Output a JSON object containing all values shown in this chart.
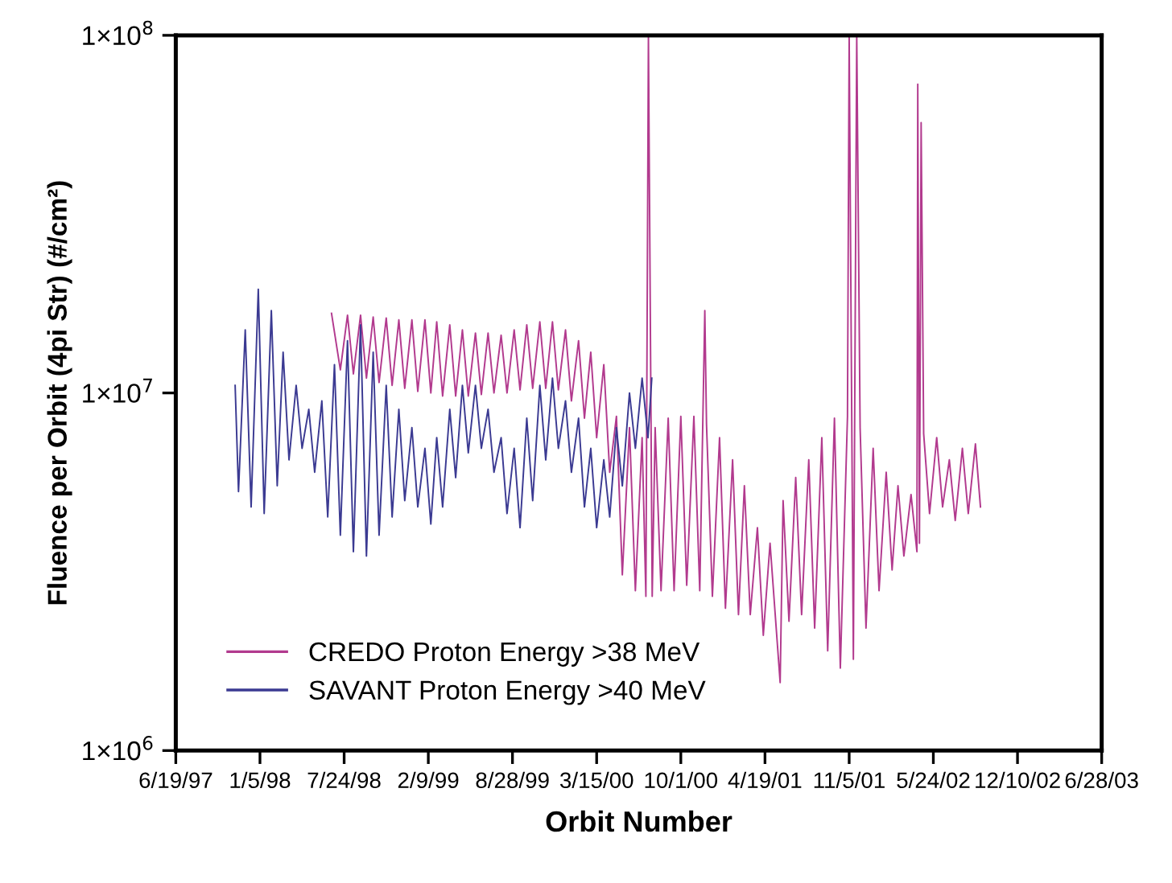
{
  "chart_data": {
    "type": "line",
    "xlabel": "Orbit Number",
    "ylabel": "Fluence per Orbit (4pi Str) (#/cm²)",
    "xlim": [
      "1997-06-19",
      "2003-06-28"
    ],
    "xticks": [
      {
        "value": "1997-06-19",
        "label": "6/19/97"
      },
      {
        "value": "1998-01-05",
        "label": "1/5/98"
      },
      {
        "value": "1998-07-24",
        "label": "7/24/98"
      },
      {
        "value": "1999-02-09",
        "label": "2/9/99"
      },
      {
        "value": "1999-08-28",
        "label": "8/28/99"
      },
      {
        "value": "2000-03-15",
        "label": "3/15/00"
      },
      {
        "value": "2000-10-01",
        "label": "10/1/00"
      },
      {
        "value": "2001-04-19",
        "label": "4/19/01"
      },
      {
        "value": "2001-11-05",
        "label": "11/5/01"
      },
      {
        "value": "2002-05-24",
        "label": "5/24/02"
      },
      {
        "value": "2002-12-10",
        "label": "12/10/02"
      },
      {
        "value": "2003-06-28",
        "label": "6/28/03"
      }
    ],
    "log": true,
    "ylim": [
      1000000.0,
      100000000.0
    ],
    "yticks": [
      {
        "value": 1000000.0,
        "label": "1×10$^{6}$"
      },
      {
        "value": 10000000.0,
        "label": "1×10$^{7}$"
      },
      {
        "value": 100000000.0,
        "label": "1×10$^{8}$"
      }
    ],
    "grid": false,
    "legend": "bottom left",
    "marker": "none",
    "line_style": "solid",
    "series": [
      {
        "name": "CREDO Proton Energy >38 MeV",
        "color": "#b23a8e",
        "x": [
          "1998-06-24",
          "1998-07-15",
          "1998-08-01",
          "1998-08-15",
          "1998-09-01",
          "1998-09-15",
          "1998-10-01",
          "1998-10-15",
          "1998-11-01",
          "1998-11-15",
          "1998-12-01",
          "1998-12-15",
          "1999-01-01",
          "1999-01-15",
          "1999-02-01",
          "1999-02-15",
          "1999-03-01",
          "1999-03-15",
          "1999-04-01",
          "1999-04-15",
          "1999-05-01",
          "1999-05-15",
          "1999-06-01",
          "1999-06-15",
          "1999-07-01",
          "1999-07-15",
          "1999-08-01",
          "1999-08-15",
          "1999-09-01",
          "1999-09-15",
          "1999-10-01",
          "1999-10-15",
          "1999-11-01",
          "1999-11-15",
          "1999-12-01",
          "1999-12-15",
          "2000-01-01",
          "2000-01-15",
          "2000-02-01",
          "2000-02-15",
          "2000-03-01",
          "2000-03-15",
          "2000-04-01",
          "2000-04-15",
          "2000-05-01",
          "2000-05-15",
          "2000-06-01",
          "2000-06-15",
          "2000-07-01",
          "2000-07-10",
          "2000-07-16",
          "2000-07-25",
          "2000-08-01",
          "2000-08-15",
          "2000-09-01",
          "2000-09-15",
          "2000-10-01",
          "2000-10-15",
          "2000-11-01",
          "2000-11-15",
          "2000-11-27",
          "2000-12-01",
          "2000-12-15",
          "2001-01-01",
          "2001-01-15",
          "2001-02-01",
          "2001-02-15",
          "2001-03-01",
          "2001-03-15",
          "2001-04-01",
          "2001-04-15",
          "2001-05-01",
          "2001-05-25",
          "2001-06-01",
          "2001-06-15",
          "2001-07-01",
          "2001-07-15",
          "2001-08-01",
          "2001-08-15",
          "2001-09-01",
          "2001-09-15",
          "2001-10-01",
          "2001-10-15",
          "2001-11-01",
          "2001-11-05",
          "2001-11-15",
          "2001-11-23",
          "2001-12-01",
          "2001-12-15",
          "2002-01-01",
          "2002-01-15",
          "2002-02-01",
          "2002-02-15",
          "2002-03-01",
          "2002-03-15",
          "2002-04-01",
          "2002-04-15",
          "2002-04-17",
          "2002-04-21",
          "2002-04-25",
          "2002-05-01",
          "2002-05-15",
          "2002-06-01",
          "2002-06-15",
          "2002-07-01",
          "2002-07-15",
          "2002-08-01",
          "2002-08-15",
          "2002-09-01",
          "2002-09-13"
        ],
        "values": [
          16700000.0,
          11600000.0,
          16500000.0,
          11300000.0,
          16500000.0,
          11000000.0,
          16300000.0,
          10700000.0,
          16200000.0,
          10500000.0,
          16000000.0,
          10300000.0,
          16000000.0,
          10100000.0,
          16000000.0,
          10000000.0,
          15800000.0,
          9800000.0,
          15500000.0,
          9800000.0,
          15000000.0,
          9800000.0,
          14700000.0,
          9900000.0,
          14700000.0,
          10000000.0,
          14500000.0,
          10000000.0,
          15000000.0,
          10200000.0,
          15500000.0,
          10300000.0,
          15800000.0,
          10300000.0,
          15800000.0,
          10200000.0,
          15000000.0,
          9500000.0,
          14000000.0,
          8500000.0,
          13000000.0,
          7500000.0,
          12000000.0,
          6000000.0,
          8600000.0,
          3100000.0,
          8000000.0,
          2800000.0,
          7500000.0,
          2700000.0,
          100000000.0,
          2700000.0,
          8000000.0,
          2800000.0,
          8500000.0,
          2800000.0,
          8600000.0,
          2900000.0,
          8600000.0,
          2800000.0,
          17000000.0,
          8200000.0,
          2700000.0,
          7500000.0,
          2500000.0,
          6500000.0,
          2400000.0,
          5500000.0,
          2400000.0,
          4200000.0,
          2100000.0,
          3800000.0,
          1550000.0,
          5000000.0,
          2300000.0,
          5800000.0,
          2400000.0,
          6500000.0,
          2200000.0,
          7500000.0,
          1900000.0,
          8500000.0,
          1700000.0,
          8600000.0,
          100000000.0,
          1800000.0,
          100000000.0,
          8000000.0,
          2200000.0,
          7000000.0,
          2800000.0,
          6000000.0,
          3200000.0,
          5500000.0,
          3500000.0,
          5200000.0,
          3600000.0,
          73000000.0,
          3800000.0,
          57000000.0,
          7700000.0,
          4600000.0,
          7500000.0,
          4800000.0,
          6500000.0,
          4400000.0,
          7000000.0,
          4600000.0,
          7200000.0,
          4800000.0
        ]
      },
      {
        "name": "SAVANT Proton Energy >40 MeV",
        "color": "#3b3a92",
        "x": [
          "1997-11-07",
          "1997-11-15",
          "1997-12-01",
          "1997-12-15",
          "1998-01-01",
          "1998-01-15",
          "1998-02-01",
          "1998-02-15",
          "1998-03-01",
          "1998-03-15",
          "1998-04-01",
          "1998-04-15",
          "1998-05-01",
          "1998-05-15",
          "1998-06-01",
          "1998-06-15",
          "1998-07-01",
          "1998-07-15",
          "1998-08-01",
          "1998-08-15",
          "1998-09-01",
          "1998-09-15",
          "1998-10-01",
          "1998-10-15",
          "1998-11-01",
          "1998-11-15",
          "1998-12-01",
          "1998-12-15",
          "1999-01-01",
          "1999-01-15",
          "1999-02-01",
          "1999-02-15",
          "1999-03-01",
          "1999-03-15",
          "1999-04-01",
          "1999-04-15",
          "1999-05-01",
          "1999-05-15",
          "1999-06-01",
          "1999-06-15",
          "1999-07-01",
          "1999-07-15",
          "1999-08-01",
          "1999-08-15",
          "1999-09-01",
          "1999-09-15",
          "1999-10-01",
          "1999-10-15",
          "1999-11-01",
          "1999-11-15",
          "1999-12-01",
          "1999-12-15",
          "2000-01-01",
          "2000-01-15",
          "2000-02-01",
          "2000-02-15",
          "2000-03-01",
          "2000-03-15",
          "2000-04-01",
          "2000-04-15",
          "2000-05-01",
          "2000-05-15",
          "2000-06-01",
          "2000-06-15",
          "2000-07-01",
          "2000-07-15",
          "2000-07-24"
        ],
        "values": [
          10500000.0,
          5300000.0,
          15000000.0,
          4800000.0,
          19500000.0,
          4600000.0,
          17000000.0,
          5500000.0,
          13000000.0,
          6500000.0,
          10500000.0,
          7000000.0,
          9000000.0,
          6000000.0,
          9500000.0,
          4500000.0,
          12000000.0,
          4000000.0,
          14000000.0,
          3600000.0,
          15500000.0,
          3500000.0,
          13000000.0,
          4000000.0,
          10500000.0,
          4500000.0,
          9000000.0,
          5000000.0,
          8000000.0,
          4800000.0,
          7000000.0,
          4300000.0,
          7500000.0,
          4800000.0,
          9000000.0,
          5800000.0,
          10500000.0,
          6800000.0,
          10500000.0,
          7000000.0,
          9000000.0,
          6000000.0,
          7500000.0,
          4600000.0,
          7000000.0,
          4200000.0,
          8500000.0,
          5000000.0,
          10500000.0,
          6500000.0,
          11000000.0,
          7000000.0,
          9500000.0,
          6000000.0,
          8500000.0,
          4800000.0,
          7000000.0,
          4200000.0,
          6500000.0,
          4500000.0,
          8000000.0,
          5500000.0,
          10000000.0,
          7000000.0,
          11000000.0,
          7500000.0,
          11000000.0
        ]
      }
    ]
  }
}
